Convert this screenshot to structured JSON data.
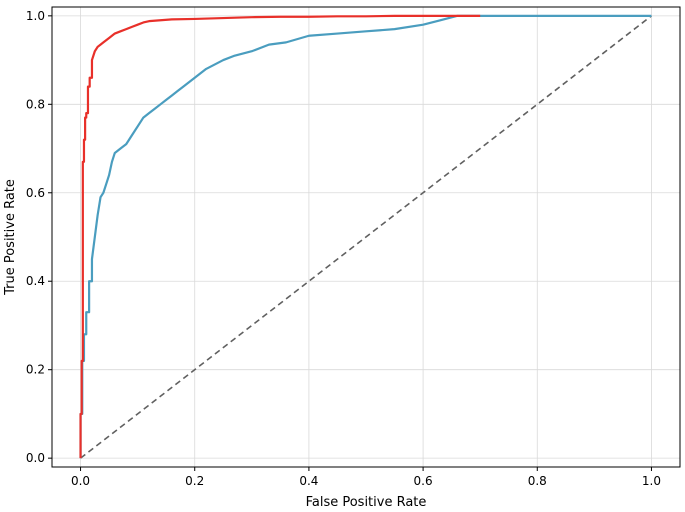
{
  "chart_data": {
    "type": "line",
    "title": "",
    "xlabel": "False Positive Rate",
    "ylabel": "True Positive Rate",
    "xlim": [
      -0.05,
      1.05
    ],
    "ylim": [
      -0.02,
      1.02
    ],
    "xticks": [
      0.0,
      0.2,
      0.4,
      0.6,
      0.8,
      1.0
    ],
    "yticks": [
      0.0,
      0.2,
      0.4,
      0.6,
      0.8,
      1.0
    ],
    "xtick_labels": [
      "0.0",
      "0.2",
      "0.4",
      "0.6",
      "0.8",
      "1.0"
    ],
    "ytick_labels": [
      "0.0",
      "0.2",
      "0.4",
      "0.6",
      "0.8",
      "1.0"
    ],
    "grid": true,
    "legend": false,
    "series": [
      {
        "color": "#e8302a",
        "style": "solid",
        "x": [
          0.0,
          0.0,
          0.002,
          0.002,
          0.004,
          0.004,
          0.006,
          0.006,
          0.008,
          0.008,
          0.01,
          0.01,
          0.013,
          0.013,
          0.016,
          0.016,
          0.02,
          0.02,
          0.025,
          0.03,
          0.035,
          0.04,
          0.05,
          0.06,
          0.07,
          0.08,
          0.09,
          0.1,
          0.11,
          0.12,
          0.14,
          0.16,
          0.2,
          0.25,
          0.3,
          0.35,
          0.4,
          0.45,
          0.5,
          0.55,
          0.6,
          0.65,
          0.7
        ],
        "y": [
          0.0,
          0.1,
          0.1,
          0.22,
          0.22,
          0.67,
          0.67,
          0.72,
          0.72,
          0.77,
          0.77,
          0.78,
          0.78,
          0.84,
          0.84,
          0.86,
          0.86,
          0.9,
          0.92,
          0.93,
          0.935,
          0.94,
          0.95,
          0.96,
          0.965,
          0.97,
          0.975,
          0.98,
          0.985,
          0.988,
          0.99,
          0.992,
          0.993,
          0.995,
          0.997,
          0.998,
          0.998,
          0.999,
          0.999,
          1.0,
          1.0,
          1.0,
          1.0
        ]
      },
      {
        "color": "#4a9dbf",
        "style": "solid",
        "x": [
          0.0,
          0.0,
          0.003,
          0.003,
          0.006,
          0.006,
          0.01,
          0.01,
          0.015,
          0.015,
          0.02,
          0.02,
          0.025,
          0.03,
          0.035,
          0.04,
          0.045,
          0.05,
          0.055,
          0.06,
          0.07,
          0.08,
          0.09,
          0.1,
          0.11,
          0.12,
          0.13,
          0.14,
          0.15,
          0.16,
          0.17,
          0.18,
          0.2,
          0.22,
          0.25,
          0.27,
          0.3,
          0.33,
          0.36,
          0.4,
          0.45,
          0.5,
          0.55,
          0.6,
          0.63,
          0.66,
          0.7,
          0.8,
          0.9,
          1.0
        ],
        "y": [
          0.0,
          0.1,
          0.1,
          0.22,
          0.22,
          0.28,
          0.28,
          0.33,
          0.33,
          0.4,
          0.4,
          0.45,
          0.5,
          0.55,
          0.59,
          0.6,
          0.62,
          0.64,
          0.67,
          0.69,
          0.7,
          0.71,
          0.73,
          0.75,
          0.77,
          0.78,
          0.79,
          0.8,
          0.81,
          0.82,
          0.83,
          0.84,
          0.86,
          0.88,
          0.9,
          0.91,
          0.92,
          0.935,
          0.94,
          0.955,
          0.96,
          0.965,
          0.97,
          0.98,
          0.99,
          1.0,
          1.0,
          1.0,
          1.0,
          1.0
        ]
      },
      {
        "color": "#606060",
        "style": "dashed",
        "x": [
          0.0,
          1.0
        ],
        "y": [
          0.0,
          1.0
        ]
      }
    ]
  }
}
